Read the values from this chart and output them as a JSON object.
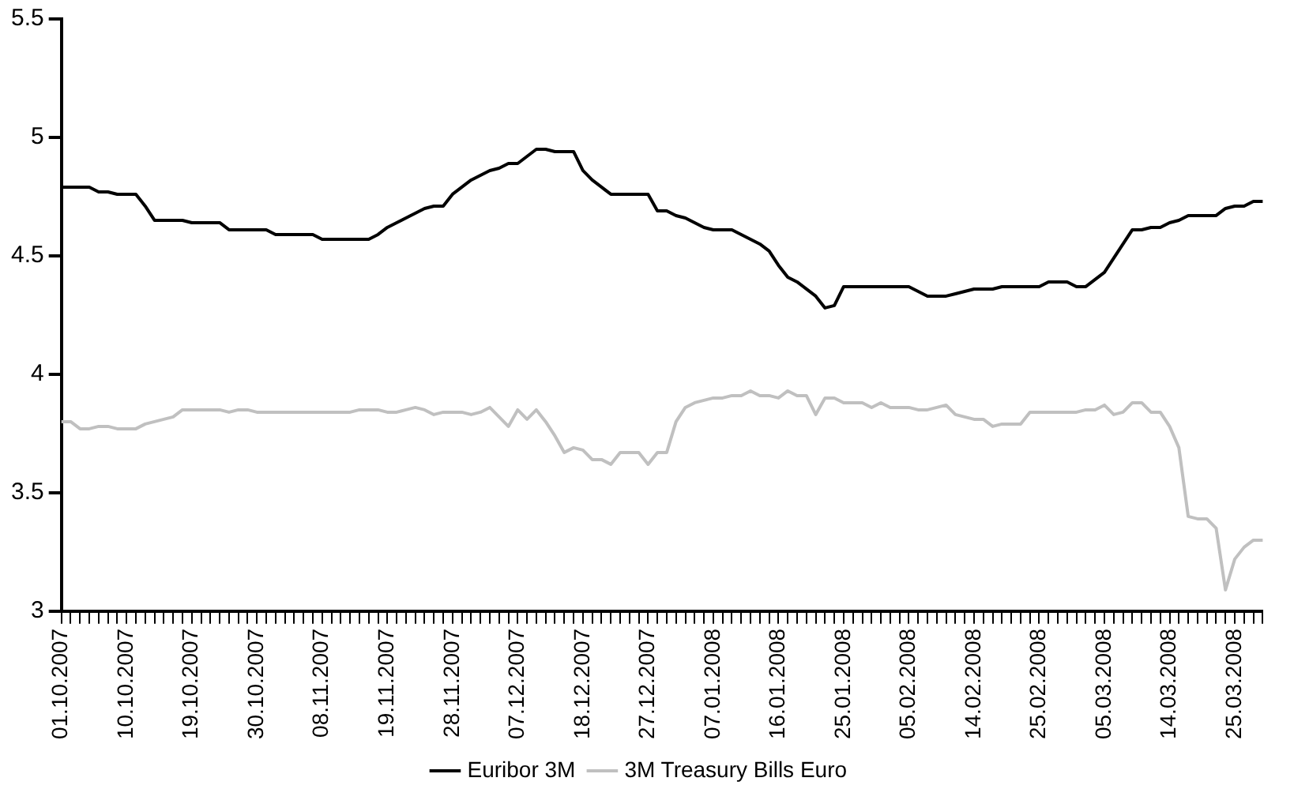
{
  "chart_data": {
    "type": "line",
    "categories": [
      "01.10.2007",
      null,
      null,
      null,
      null,
      null,
      null,
      "10.10.2007",
      null,
      null,
      null,
      null,
      null,
      null,
      "19.10.2007",
      null,
      null,
      null,
      null,
      null,
      null,
      "30.10.2007",
      null,
      null,
      null,
      null,
      null,
      null,
      "08.11.2007",
      null,
      null,
      null,
      null,
      null,
      null,
      "19.11.2007",
      null,
      null,
      null,
      null,
      null,
      null,
      "28.11.2007",
      null,
      null,
      null,
      null,
      null,
      null,
      "07.12.2007",
      null,
      null,
      null,
      null,
      null,
      null,
      "18.12.2007",
      null,
      null,
      null,
      null,
      null,
      null,
      "27.12.2007",
      null,
      null,
      null,
      null,
      null,
      null,
      "07.01.2008",
      null,
      null,
      null,
      null,
      null,
      null,
      "16.01.2008",
      null,
      null,
      null,
      null,
      null,
      null,
      "25.01.2008",
      null,
      null,
      null,
      null,
      null,
      null,
      "05.02.2008",
      null,
      null,
      null,
      null,
      null,
      null,
      "14.02.2008",
      null,
      null,
      null,
      null,
      null,
      null,
      "25.02.2008",
      null,
      null,
      null,
      null,
      null,
      null,
      "05.03.2008",
      null,
      null,
      null,
      null,
      null,
      null,
      "14.03.2008",
      null,
      null,
      null,
      null,
      null,
      null,
      "25.03.2008",
      null,
      null,
      null
    ],
    "series": [
      {
        "name": "Euribor 3M",
        "color": "#000000",
        "values": [
          4.79,
          4.79,
          4.79,
          4.79,
          4.77,
          4.77,
          4.76,
          4.76,
          4.76,
          4.71,
          4.65,
          4.65,
          4.65,
          4.65,
          4.64,
          4.64,
          4.64,
          4.64,
          4.61,
          4.61,
          4.61,
          4.61,
          4.61,
          4.59,
          4.59,
          4.59,
          4.59,
          4.59,
          4.57,
          4.57,
          4.57,
          4.57,
          4.57,
          4.57,
          4.59,
          4.62,
          4.64,
          4.66,
          4.68,
          4.7,
          4.71,
          4.71,
          4.76,
          4.79,
          4.82,
          4.84,
          4.86,
          4.87,
          4.89,
          4.89,
          4.92,
          4.95,
          4.95,
          4.94,
          4.94,
          4.94,
          4.86,
          4.82,
          4.79,
          4.76,
          4.76,
          4.76,
          4.76,
          4.76,
          4.69,
          4.69,
          4.67,
          4.66,
          4.64,
          4.62,
          4.61,
          4.61,
          4.61,
          4.59,
          4.57,
          4.55,
          4.52,
          4.46,
          4.41,
          4.39,
          4.36,
          4.33,
          4.28,
          4.29,
          4.37,
          4.37,
          4.37,
          4.37,
          4.37,
          4.37,
          4.37,
          4.37,
          4.35,
          4.33,
          4.33,
          4.33,
          4.34,
          4.35,
          4.36,
          4.36,
          4.36,
          4.37,
          4.37,
          4.37,
          4.37,
          4.37,
          4.39,
          4.39,
          4.39,
          4.37,
          4.37,
          4.4,
          4.43,
          4.49,
          4.55,
          4.61,
          4.61,
          4.62,
          4.62,
          4.64,
          4.65,
          4.67,
          4.67,
          4.67,
          4.67,
          4.7,
          4.71,
          4.71,
          4.73,
          4.73
        ]
      },
      {
        "name": "3M Treasury Bills Euro",
        "color": "#c0c0c0",
        "values": [
          3.8,
          3.8,
          3.77,
          3.77,
          3.78,
          3.78,
          3.77,
          3.77,
          3.77,
          3.79,
          3.8,
          3.81,
          3.82,
          3.85,
          3.85,
          3.85,
          3.85,
          3.85,
          3.84,
          3.85,
          3.85,
          3.84,
          3.84,
          3.84,
          3.84,
          3.84,
          3.84,
          3.84,
          3.84,
          3.84,
          3.84,
          3.84,
          3.85,
          3.85,
          3.85,
          3.84,
          3.84,
          3.85,
          3.86,
          3.85,
          3.83,
          3.84,
          3.84,
          3.84,
          3.83,
          3.84,
          3.86,
          3.82,
          3.78,
          3.85,
          3.81,
          3.85,
          3.8,
          3.74,
          3.67,
          3.69,
          3.68,
          3.64,
          3.64,
          3.62,
          3.67,
          3.67,
          3.67,
          3.62,
          3.67,
          3.67,
          3.8,
          3.86,
          3.88,
          3.89,
          3.9,
          3.9,
          3.91,
          3.91,
          3.93,
          3.91,
          3.91,
          3.9,
          3.93,
          3.91,
          3.91,
          3.83,
          3.9,
          3.9,
          3.88,
          3.88,
          3.88,
          3.86,
          3.88,
          3.86,
          3.86,
          3.86,
          3.85,
          3.85,
          3.86,
          3.87,
          3.83,
          3.82,
          3.81,
          3.81,
          3.78,
          3.79,
          3.79,
          3.79,
          3.84,
          3.84,
          3.84,
          3.84,
          3.84,
          3.84,
          3.85,
          3.85,
          3.87,
          3.83,
          3.84,
          3.88,
          3.88,
          3.84,
          3.84,
          3.78,
          3.69,
          3.4,
          3.39,
          3.39,
          3.35,
          3.09,
          3.22,
          3.27,
          3.3,
          3.3
        ]
      }
    ],
    "ylim": [
      3,
      5.5
    ],
    "yticks": [
      3,
      3.5,
      4,
      4.5,
      5,
      5.5
    ],
    "grid": false,
    "legend": "bottom",
    "marker": "none",
    "line_style": "solid"
  }
}
